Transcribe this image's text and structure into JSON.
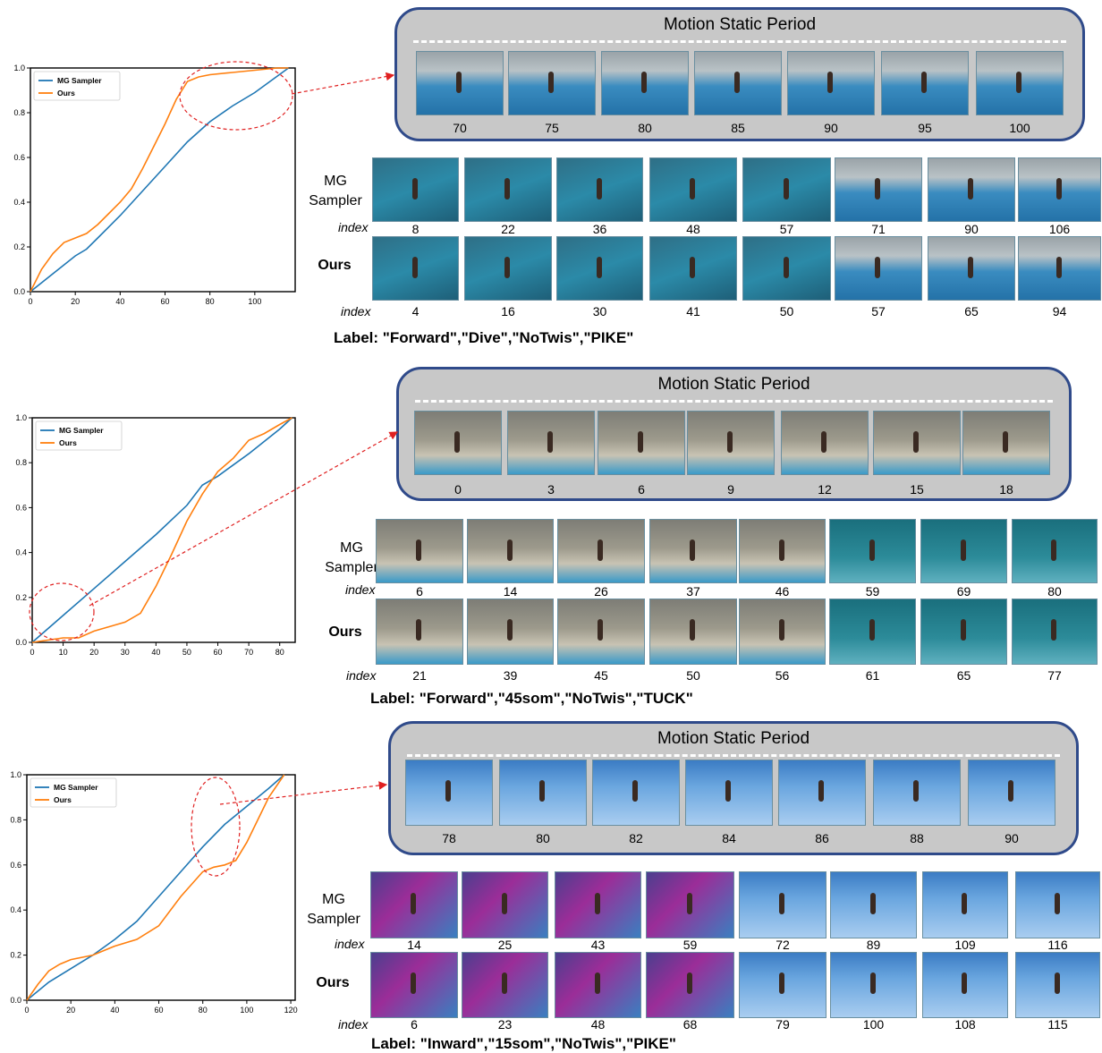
{
  "panels": [
    {
      "msp_title": "Motion Static Period",
      "msp_indices": [
        "70",
        "75",
        "80",
        "85",
        "90",
        "95",
        "100"
      ],
      "mg_label": "MG Sampler",
      "ours_label": "Ours",
      "index_word": "index",
      "mg_indices": [
        "8",
        "22",
        "36",
        "48",
        "57",
        "71",
        "90",
        "106"
      ],
      "ours_indices": [
        "4",
        "16",
        "30",
        "41",
        "50",
        "57",
        "65",
        "94"
      ],
      "label_text": "Label: \"Forward\",\"Dive\",\"NoTwis\",\"PIKE\""
    },
    {
      "msp_title": "Motion Static Period",
      "msp_indices": [
        "0",
        "3",
        "6",
        "9",
        "12",
        "15",
        "18"
      ],
      "mg_label": "MG Sampler",
      "ours_label": "Ours",
      "index_word": "index",
      "mg_indices": [
        "6",
        "14",
        "26",
        "37",
        "46",
        "59",
        "69",
        "80"
      ],
      "ours_indices": [
        "21",
        "39",
        "45",
        "50",
        "56",
        "61",
        "65",
        "77"
      ],
      "label_text": "Label: \"Forward\",\"45som\",\"NoTwis\",\"TUCK\""
    },
    {
      "msp_title": "Motion Static Period",
      "msp_indices": [
        "78",
        "80",
        "82",
        "84",
        "86",
        "88",
        "90"
      ],
      "mg_label": "MG Sampler",
      "ours_label": "Ours",
      "index_word": "index",
      "mg_indices": [
        "14",
        "25",
        "43",
        "59",
        "72",
        "89",
        "109",
        "116"
      ],
      "ours_indices": [
        "6",
        "23",
        "48",
        "68",
        "79",
        "100",
        "108",
        "115"
      ],
      "label_text": "Label: \"Inward\",\"15som\",\"NoTwis\",\"PIKE\""
    }
  ],
  "chart_data": [
    {
      "type": "line",
      "legend": [
        "MG Sampler",
        "Ours"
      ],
      "legend_position": "top-left",
      "colors": {
        "MG Sampler": "#1f77b4",
        "Ours": "#ff7f0e"
      },
      "xlim": [
        0,
        118
      ],
      "ylim": [
        0,
        1.0
      ],
      "xticks": [
        "0",
        "20",
        "40",
        "60",
        "80",
        "100"
      ],
      "yticks": [
        "0.0",
        "0.2",
        "0.4",
        "0.6",
        "0.8",
        "1.0"
      ],
      "series": [
        {
          "name": "MG Sampler",
          "x": [
            0,
            10,
            20,
            25,
            30,
            40,
            50,
            60,
            70,
            80,
            90,
            100,
            115
          ],
          "y": [
            0,
            0.08,
            0.16,
            0.19,
            0.24,
            0.34,
            0.45,
            0.56,
            0.67,
            0.76,
            0.83,
            0.89,
            1.0
          ]
        },
        {
          "name": "Ours",
          "x": [
            0,
            5,
            10,
            15,
            20,
            25,
            30,
            35,
            40,
            45,
            50,
            55,
            60,
            65,
            70,
            75,
            80,
            90,
            100,
            110,
            115
          ],
          "y": [
            0,
            0.1,
            0.17,
            0.22,
            0.24,
            0.26,
            0.3,
            0.35,
            0.4,
            0.46,
            0.55,
            0.65,
            0.75,
            0.86,
            0.94,
            0.96,
            0.97,
            0.98,
            0.99,
            1.0,
            1.0
          ]
        }
      ]
    },
    {
      "type": "line",
      "legend": [
        "MG Sampler",
        "Ours"
      ],
      "legend_position": "top-left",
      "colors": {
        "MG Sampler": "#1f77b4",
        "Ours": "#ff7f0e"
      },
      "xlim": [
        0,
        85
      ],
      "ylim": [
        0,
        1.0
      ],
      "xticks": [
        "0",
        "10",
        "20",
        "30",
        "40",
        "50",
        "60",
        "70",
        "80"
      ],
      "yticks": [
        "0.0",
        "0.2",
        "0.4",
        "0.6",
        "0.8",
        "1.0"
      ],
      "series": [
        {
          "name": "MG Sampler",
          "x": [
            0,
            10,
            20,
            30,
            40,
            50,
            55,
            60,
            65,
            70,
            80,
            84
          ],
          "y": [
            0,
            0.12,
            0.24,
            0.36,
            0.48,
            0.61,
            0.7,
            0.74,
            0.79,
            0.84,
            0.95,
            1.0
          ]
        },
        {
          "name": "Ours",
          "x": [
            0,
            5,
            10,
            15,
            20,
            25,
            30,
            35,
            40,
            45,
            50,
            55,
            60,
            65,
            70,
            75,
            80,
            84
          ],
          "y": [
            0,
            0.01,
            0.02,
            0.02,
            0.05,
            0.07,
            0.09,
            0.13,
            0.25,
            0.39,
            0.54,
            0.66,
            0.76,
            0.82,
            0.9,
            0.93,
            0.97,
            1.0
          ]
        }
      ]
    },
    {
      "type": "line",
      "legend": [
        "MG Sampler",
        "Ours"
      ],
      "legend_position": "top-left",
      "colors": {
        "MG Sampler": "#1f77b4",
        "Ours": "#ff7f0e"
      },
      "xlim": [
        0,
        122
      ],
      "ylim": [
        0,
        1.0
      ],
      "xticks": [
        "0",
        "20",
        "40",
        "60",
        "80",
        "100",
        "120"
      ],
      "yticks": [
        "0.0",
        "0.2",
        "0.4",
        "0.6",
        "0.8",
        "1.0"
      ],
      "series": [
        {
          "name": "MG Sampler",
          "x": [
            0,
            10,
            20,
            30,
            40,
            50,
            60,
            70,
            80,
            90,
            100,
            110,
            117
          ],
          "y": [
            0,
            0.08,
            0.14,
            0.2,
            0.27,
            0.35,
            0.46,
            0.57,
            0.68,
            0.78,
            0.86,
            0.94,
            1.0
          ]
        },
        {
          "name": "Ours",
          "x": [
            0,
            5,
            10,
            15,
            20,
            30,
            40,
            50,
            60,
            70,
            80,
            85,
            90,
            95,
            100,
            105,
            110,
            117
          ],
          "y": [
            0,
            0.07,
            0.13,
            0.16,
            0.18,
            0.2,
            0.24,
            0.27,
            0.33,
            0.46,
            0.57,
            0.59,
            0.6,
            0.62,
            0.7,
            0.8,
            0.9,
            1.0
          ]
        }
      ]
    }
  ]
}
